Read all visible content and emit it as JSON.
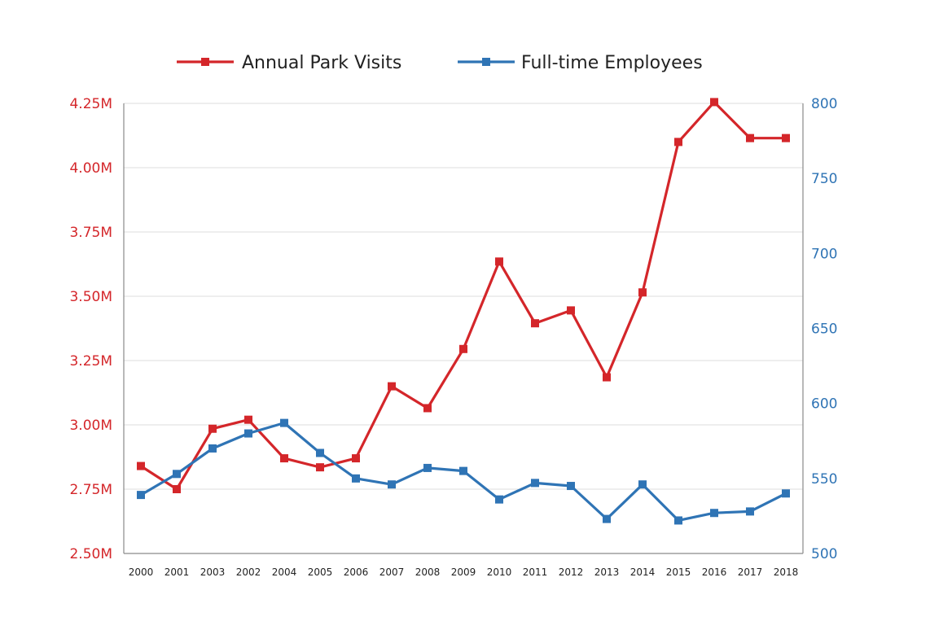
{
  "chart_data": {
    "type": "line",
    "title": "",
    "xlabel": "",
    "ylabel_left": "",
    "ylabel_right": "",
    "categories": [
      "2000",
      "2001",
      "2003",
      "2002",
      "2004",
      "2005",
      "2006",
      "2007",
      "2008",
      "2009",
      "2010",
      "2011",
      "2012",
      "2013",
      "2014",
      "2015",
      "2016",
      "2017",
      "2018"
    ],
    "legend_position": "top-center",
    "grid": true,
    "axes": {
      "left": {
        "min": 2.5,
        "max": 4.25,
        "ticks": [
          2.5,
          2.75,
          3.0,
          3.25,
          3.5,
          3.75,
          4.0,
          4.25
        ],
        "tick_labels": [
          "2.50M",
          "2.75M",
          "3.00M",
          "3.25M",
          "3.50M",
          "3.75M",
          "4.00M",
          "4.25M"
        ],
        "color": "#d4262a"
      },
      "right": {
        "min": 500,
        "max": 800,
        "ticks": [
          500,
          550,
          600,
          650,
          700,
          750,
          800
        ],
        "tick_labels": [
          "500",
          "550",
          "600",
          "650",
          "700",
          "750",
          "800"
        ],
        "color": "#2f74b5"
      }
    },
    "series": [
      {
        "name": "Annual Park Visits",
        "axis": "left",
        "color": "#d4262a",
        "values": [
          2.84,
          2.75,
          2.985,
          3.02,
          2.87,
          2.835,
          2.87,
          3.15,
          3.065,
          3.295,
          3.635,
          3.395,
          3.445,
          3.185,
          3.515,
          4.1,
          4.255,
          4.115,
          4.115
        ]
      },
      {
        "name": "Full-time Employees",
        "axis": "right",
        "color": "#2f74b5",
        "values": [
          539,
          553,
          570,
          580,
          587,
          567,
          550,
          546,
          557,
          555,
          536,
          547,
          545,
          523,
          546,
          522,
          527,
          528,
          540
        ]
      }
    ]
  }
}
